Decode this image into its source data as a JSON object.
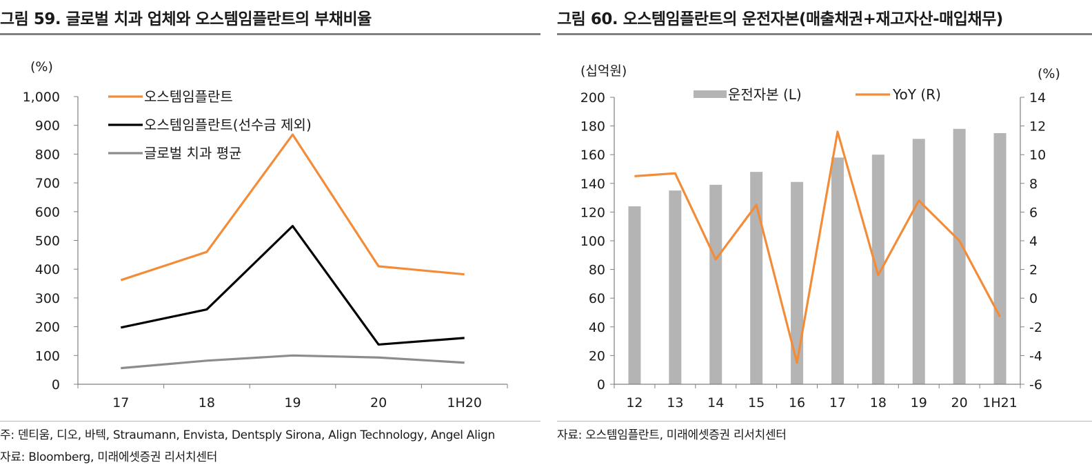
{
  "left": {
    "title": "그림 59. 글로벌 치과 업체와 오스템임플란트의 부채비율",
    "notes": [
      "주: 덴티움, 디오, 바텍, Straumann, Envista, Dentsply Sirona, Align Technology, Angel Align",
      "자료: Bloomberg, 미래에셋증권 리서치센터"
    ]
  },
  "right": {
    "title": "그림 60. 오스템임플란트의 운전자본(매출채권+재고자산-매입채무)",
    "notes": [
      "자료: 오스템임플란트, 미래에셋증권 리서치센터"
    ]
  },
  "chart_data": [
    {
      "type": "line",
      "title": "그림 59. 글로벌 치과 업체와 오스템임플란트의 부채비율",
      "ylabel": "(%)",
      "ylim": [
        0,
        1000
      ],
      "yticks": [
        "0",
        "100",
        "200",
        "300",
        "400",
        "500",
        "600",
        "700",
        "800",
        "900",
        "1,000"
      ],
      "categories": [
        "17",
        "18",
        "19",
        "20",
        "1H20"
      ],
      "legend_position": "top-left",
      "grid": false,
      "series": [
        {
          "name": "오스템임플란트",
          "color": "#F28C38",
          "values": [
            362,
            460,
            868,
            410,
            382
          ]
        },
        {
          "name": "오스템임플란트(선수금 제외)",
          "color": "#000000",
          "values": [
            197,
            260,
            550,
            138,
            161
          ]
        },
        {
          "name": "글로벌 치과 평균",
          "color": "#8C8C8C",
          "values": [
            56,
            82,
            100,
            93,
            75
          ]
        }
      ]
    },
    {
      "type": "bar",
      "title": "그림 60. 오스템임플란트의 운전자본(매출채권+재고자산-매입채무)",
      "ylabel": "(십억원)",
      "y2label": "(%)",
      "ylim": [
        0,
        200
      ],
      "y2lim": [
        -6,
        14
      ],
      "yticks": [
        "0",
        "20",
        "40",
        "60",
        "80",
        "100",
        "120",
        "140",
        "160",
        "180",
        "200"
      ],
      "y2ticks": [
        "-6",
        "-4",
        "-2",
        "0",
        "2",
        "4",
        "6",
        "8",
        "10",
        "12",
        "14"
      ],
      "categories": [
        "12",
        "13",
        "14",
        "15",
        "16",
        "17",
        "18",
        "19",
        "20",
        "1H21"
      ],
      "legend_position": "top",
      "grid": false,
      "series": [
        {
          "name": "운전자본 (L)",
          "type": "bar",
          "axis": "left",
          "color": "#B4B4B4",
          "values": [
            124,
            135,
            139,
            148,
            141,
            158,
            160,
            171,
            178,
            175
          ]
        },
        {
          "name": "YoY (R)",
          "type": "line",
          "axis": "right",
          "color": "#F28C38",
          "values": [
            8.5,
            8.7,
            2.7,
            6.5,
            -4.5,
            11.6,
            1.6,
            6.8,
            4.0,
            -1.3
          ]
        }
      ]
    }
  ]
}
